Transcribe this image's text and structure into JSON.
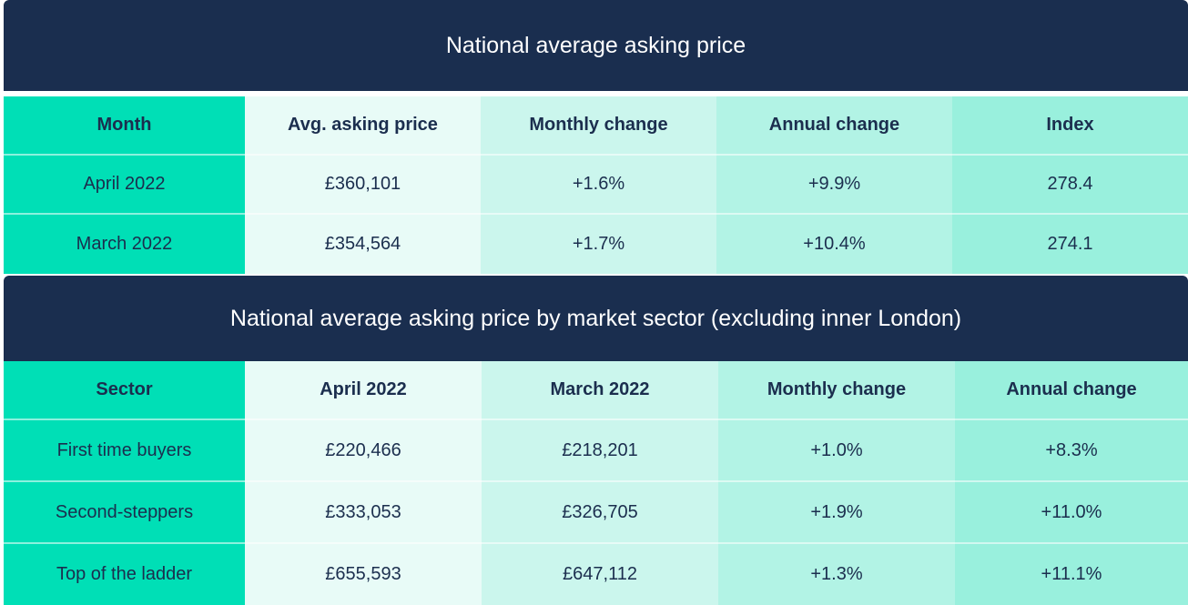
{
  "table1": {
    "title": "National average asking price",
    "headers": [
      "Month",
      "Avg. asking price",
      "Monthly change",
      "Annual change",
      "Index"
    ],
    "rows": [
      [
        "April 2022",
        "£360,101",
        "+1.6%",
        "+9.9%",
        "278.4"
      ],
      [
        "March 2022",
        "£354,564",
        "+1.7%",
        "+10.4%",
        "274.1"
      ]
    ]
  },
  "table2": {
    "title": "National average asking price by market sector (excluding inner London)",
    "headers": [
      "Sector",
      "April 2022",
      "March 2022",
      "Monthly change",
      "Annual change"
    ],
    "rows": [
      [
        "First time buyers",
        "£220,466",
        "£218,201",
        "+1.0%",
        "+8.3%"
      ],
      [
        "Second-steppers",
        "£333,053",
        "£326,705",
        "+1.9%",
        "+11.0%"
      ],
      [
        "Top of the ladder",
        "£655,593",
        "£647,112",
        "+1.3%",
        "+11.1%"
      ]
    ]
  },
  "colors": {
    "banner": "#1a2e4f",
    "text": "#1b2e4e",
    "col0": "#00dfb6",
    "col1": "#e8fbf7",
    "col2": "#cbf6ed",
    "col3": "#b2f3e5",
    "col4": "#99f0dd"
  }
}
